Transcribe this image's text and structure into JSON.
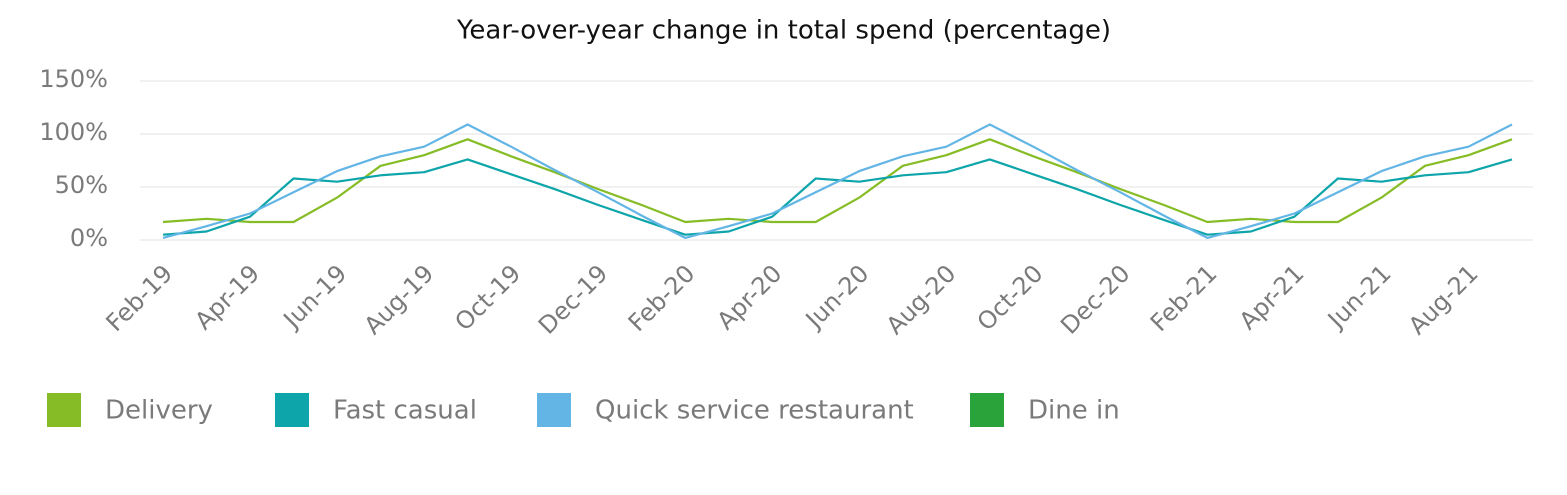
{
  "chart_data": {
    "type": "line",
    "title": "Year-over-year change in total spend (percentage)",
    "categories": [
      "Feb-19",
      null,
      "Apr-19",
      null,
      "Jun-19",
      null,
      "Aug-19",
      null,
      "Oct-19",
      null,
      "Dec-19",
      null,
      "Feb-20",
      null,
      "Apr-20",
      null,
      "Jun-20",
      null,
      "Aug-20",
      null,
      "Oct-20",
      null,
      "Dec-20",
      null,
      "Feb-21",
      null,
      "Apr-21",
      null,
      "Jun-21",
      null,
      "Aug-21",
      null
    ],
    "series": [
      {
        "name": "Delivery",
        "color": "#86bc25",
        "values": [
          17,
          20,
          17,
          17,
          40,
          70,
          80,
          95,
          79,
          64,
          48,
          33,
          17,
          20,
          17,
          17,
          40,
          70,
          80,
          95,
          79,
          64,
          48,
          33,
          17,
          20,
          17,
          17,
          40,
          70,
          80,
          95
        ]
      },
      {
        "name": "Fast casual",
        "color": "#0ea5aa",
        "values": [
          5,
          8,
          22,
          58,
          55,
          61,
          64,
          76,
          62,
          48,
          33,
          19,
          5,
          8,
          22,
          58,
          55,
          61,
          64,
          76,
          62,
          48,
          33,
          19,
          5,
          8,
          22,
          58,
          55,
          61,
          64,
          76
        ]
      },
      {
        "name": "Quick service restaurant",
        "color": "#62b5e5",
        "values": [
          2,
          13,
          25,
          45,
          65,
          79,
          88,
          109,
          88,
          66,
          45,
          23,
          2,
          13,
          25,
          45,
          65,
          79,
          88,
          109,
          88,
          66,
          45,
          23,
          2,
          13,
          25,
          45,
          65,
          79,
          88,
          109
        ]
      },
      {
        "name": "Dine in",
        "color": "#2aa43a",
        "values": [
          null,
          null,
          null,
          null,
          null,
          null,
          null,
          null,
          null,
          null,
          null,
          null,
          null,
          null,
          null,
          null,
          null,
          null,
          null,
          null,
          null,
          null,
          null,
          null,
          null,
          null,
          null,
          null,
          null,
          null,
          null,
          null
        ]
      }
    ],
    "ylim": [
      0,
      150
    ],
    "yticks": [
      {
        "value": 0,
        "label": "0%"
      },
      {
        "value": 50,
        "label": "50%"
      },
      {
        "value": 100,
        "label": "100%"
      },
      {
        "value": 150,
        "label": "150%"
      }
    ],
    "grid": true,
    "legend": "bottom"
  }
}
